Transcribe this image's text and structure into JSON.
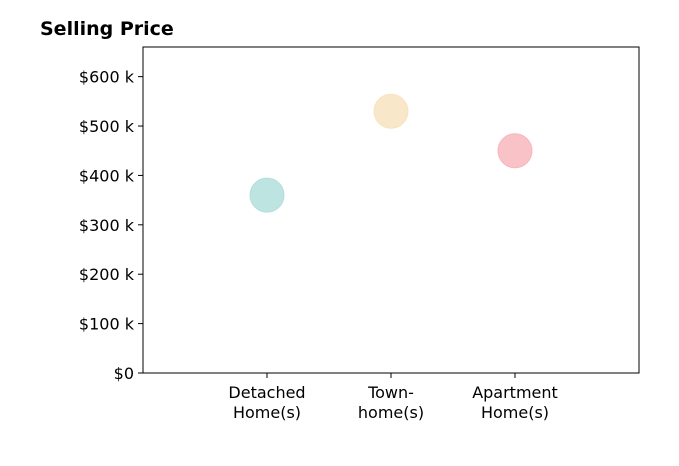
{
  "chart_data": {
    "type": "scatter",
    "title": "Selling Price",
    "categories": [
      [
        "Detached",
        "Home(s)"
      ],
      [
        "Town-",
        "home(s)"
      ],
      [
        "Apartment",
        "Home(s)"
      ]
    ],
    "values": [
      360000,
      530000,
      450000
    ],
    "colors": [
      "#b2dfdb",
      "#f8e3c0",
      "#f7b7bc"
    ],
    "xlim": [
      -1,
      3
    ],
    "ylim": [
      0,
      660000
    ],
    "yticks": [
      0,
      100000,
      200000,
      300000,
      400000,
      500000,
      600000
    ],
    "ytick_labels": [
      "$0",
      "$100 k",
      "$200 k",
      "$300 k",
      "$400 k",
      "$500 k",
      "$600 k"
    ],
    "xlabel": "",
    "ylabel": "",
    "grid": false,
    "legend": "none"
  }
}
